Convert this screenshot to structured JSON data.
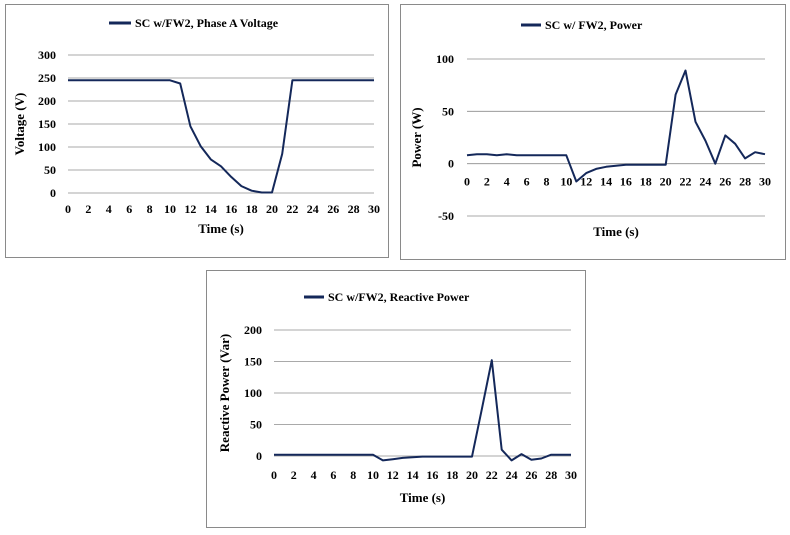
{
  "chart_data": [
    {
      "type": "line",
      "title": "SC w/FW2, Phase A Voltage",
      "xlabel": "Time (s)",
      "ylabel": "Voltage (V)",
      "ylim": [
        0,
        300
      ],
      "yticks": [
        0,
        50,
        100,
        150,
        200,
        250,
        300
      ],
      "xlim": [
        0,
        30
      ],
      "xticks": [
        0,
        2,
        4,
        6,
        8,
        10,
        12,
        14,
        16,
        18,
        20,
        22,
        24,
        26,
        28,
        30
      ],
      "grid": true,
      "legend_position": "top",
      "series": [
        {
          "name": "SC w/FW2, Phase A Voltage",
          "color": "#14285a",
          "x": [
            0,
            1,
            2,
            3,
            4,
            5,
            6,
            7,
            8,
            9,
            10,
            11,
            12,
            13,
            14,
            15,
            16,
            17,
            18,
            19,
            20,
            21,
            22,
            23,
            24,
            25,
            26,
            27,
            28,
            29,
            30
          ],
          "y": [
            245,
            245,
            245,
            245,
            245,
            245,
            245,
            245,
            245,
            245,
            245,
            238,
            145,
            102,
            73,
            58,
            35,
            15,
            5,
            1,
            1,
            85,
            245,
            245,
            245,
            245,
            245,
            245,
            245,
            245,
            245
          ]
        }
      ]
    },
    {
      "type": "line",
      "title": "SC w/ FW2, Power",
      "xlabel": "Time (s)",
      "ylabel": "Power (W)",
      "ylim": [
        -50,
        100
      ],
      "yticks": [
        -50,
        0,
        50,
        100
      ],
      "xlim": [
        0,
        30
      ],
      "xticks": [
        0,
        2,
        4,
        6,
        8,
        10,
        12,
        14,
        16,
        18,
        20,
        22,
        24,
        26,
        28,
        30
      ],
      "grid": true,
      "legend_position": "top",
      "series": [
        {
          "name": "SC w/ FW2, Power",
          "color": "#14285a",
          "x": [
            0,
            1,
            2,
            3,
            4,
            5,
            6,
            7,
            8,
            9,
            10,
            11,
            12,
            13,
            14,
            15,
            16,
            17,
            18,
            19,
            20,
            21,
            22,
            23,
            24,
            25,
            26,
            27,
            28,
            29,
            30
          ],
          "y": [
            8,
            9,
            9,
            8,
            9,
            8,
            8,
            8,
            8,
            8,
            8,
            -17,
            -9,
            -5,
            -3,
            -2,
            -1,
            -1,
            -1,
            -1,
            -1,
            66,
            89,
            40,
            22,
            0,
            27,
            19,
            5,
            11,
            9
          ]
        }
      ]
    },
    {
      "type": "line",
      "title": "SC w/FW2, Reactive Power",
      "xlabel": "Time (s)",
      "ylabel": "Reactive Power (Var)",
      "ylim": [
        0,
        200
      ],
      "yticks": [
        0,
        50,
        100,
        150,
        200
      ],
      "xlim": [
        0,
        30
      ],
      "xticks": [
        0,
        2,
        4,
        6,
        8,
        10,
        12,
        14,
        16,
        18,
        20,
        22,
        24,
        26,
        28,
        30
      ],
      "grid": true,
      "legend_position": "top",
      "series": [
        {
          "name": "SC w/FW2, Reactive Power",
          "color": "#14285a",
          "x": [
            0,
            1,
            2,
            3,
            4,
            5,
            6,
            7,
            8,
            9,
            10,
            11,
            12,
            13,
            14,
            15,
            16,
            17,
            18,
            19,
            20,
            21,
            22,
            23,
            24,
            25,
            26,
            27,
            28,
            29,
            30
          ],
          "y": [
            2,
            2,
            2,
            2,
            2,
            2,
            2,
            2,
            2,
            2,
            2,
            -7,
            -5,
            -3,
            -2,
            -1,
            -1,
            -1,
            -1,
            -1,
            -1,
            75,
            152,
            10,
            -7,
            3,
            -6,
            -4,
            2,
            2,
            2
          ]
        }
      ]
    }
  ]
}
